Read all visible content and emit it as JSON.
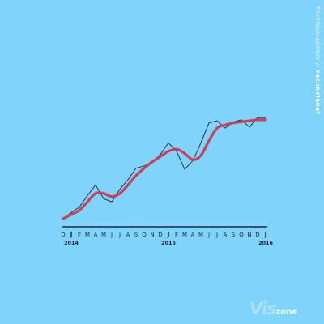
{
  "chart_data": {
    "type": "line",
    "title": "",
    "xlabel": "",
    "ylabel": "",
    "x": [
      "D",
      "J",
      "F",
      "M",
      "A",
      "M",
      "J",
      "J",
      "A",
      "S",
      "O",
      "N",
      "D",
      "J",
      "F",
      "M",
      "A",
      "M",
      "J",
      "J",
      "A",
      "S",
      "O",
      "N",
      "D",
      "J"
    ],
    "year_labels": [
      {
        "index": 1,
        "label": "2014"
      },
      {
        "index": 13,
        "label": "2015"
      },
      {
        "index": 25,
        "label": "2016"
      }
    ],
    "ylim": [
      0,
      100
    ],
    "series": [
      {
        "values": [
          0,
          6,
          11,
          22,
          32,
          19,
          16,
          28,
          37,
          48,
          50,
          54,
          61,
          72,
          64,
          47,
          55,
          72,
          91,
          93,
          86,
          92,
          94,
          87,
          96,
          96
        ],
        "color": "#20203c"
      },
      {
        "values": [
          0,
          4,
          8,
          16,
          24,
          24,
          21,
          24,
          32,
          41,
          48,
          54,
          59,
          64,
          66,
          62,
          56,
          60,
          74,
          86,
          89,
          91,
          92,
          93,
          94,
          94
        ],
        "color": "#c8405a"
      }
    ]
  },
  "side_text": {
    "tag": "#ACHARTADAY",
    "separator": " // ",
    "site": "THEVISUALAGENCY"
  },
  "logo": {
    "vis": "Vis",
    "zone": "zone"
  }
}
